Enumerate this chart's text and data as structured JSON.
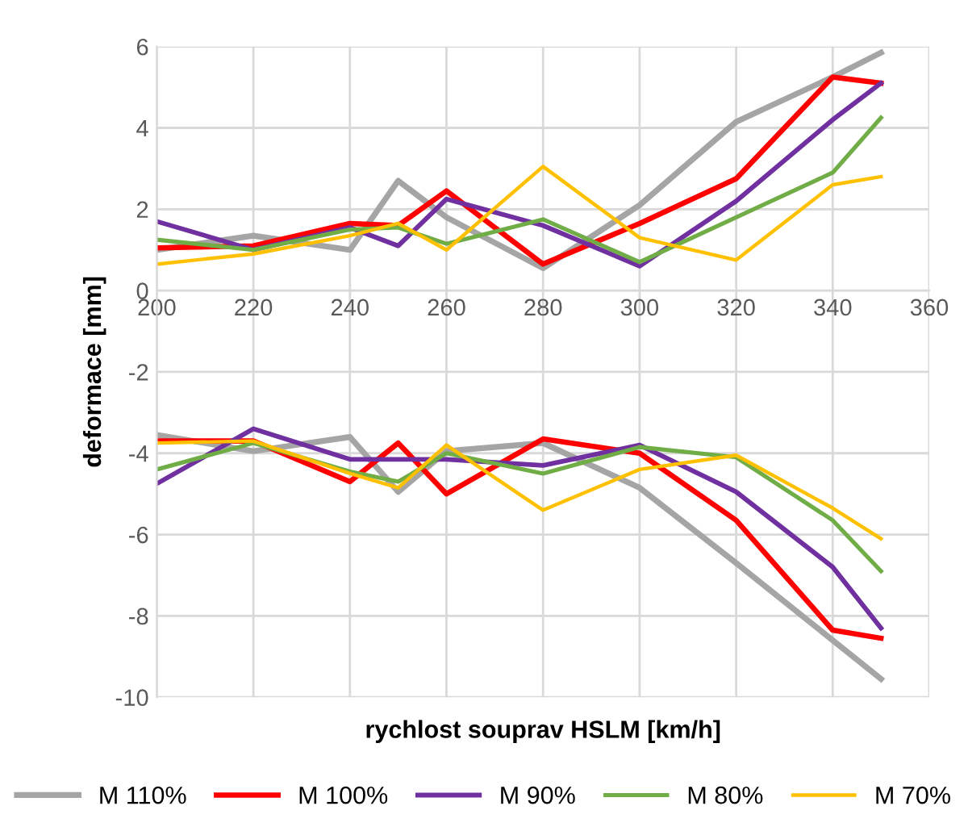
{
  "chart_data": {
    "type": "line",
    "xlabel": "rychlost souprav HSLM [km/h]",
    "ylabel": "deformace [mm]",
    "x": [
      200,
      220,
      240,
      250,
      260,
      280,
      300,
      320,
      340,
      350
    ],
    "xlim": [
      200,
      360
    ],
    "xticks": [
      200,
      220,
      240,
      260,
      280,
      300,
      320,
      340,
      360
    ],
    "ylim": [
      -10,
      6
    ],
    "yticks": [
      -10,
      -8,
      -6,
      -4,
      -2,
      0,
      2,
      4,
      6
    ],
    "grid": true,
    "legend": "bottom",
    "marker": "none",
    "line_style": "solid",
    "series": [
      {
        "name": "M 110%",
        "color": "#a5a5a5",
        "values": [
          1.0,
          1.35,
          1.0,
          2.7,
          1.8,
          0.55,
          2.1,
          4.15,
          5.25,
          5.85
        ]
      },
      {
        "name": "M 100%",
        "color": "#ff0000",
        "values": [
          1.05,
          1.1,
          1.65,
          1.6,
          2.45,
          0.65,
          1.65,
          2.75,
          5.25,
          5.1
        ]
      },
      {
        "name": "M 90%",
        "color": "#7030a0",
        "values": [
          1.7,
          1.0,
          1.55,
          1.1,
          2.25,
          1.6,
          0.6,
          2.2,
          4.2,
          5.1
        ]
      },
      {
        "name": "M 80%",
        "color": "#70ad47",
        "values": [
          1.25,
          1.0,
          1.5,
          1.55,
          1.15,
          1.75,
          0.7,
          1.8,
          2.9,
          4.25
        ]
      },
      {
        "name": "M 70%",
        "color": "#ffc000",
        "values": [
          0.65,
          0.9,
          1.35,
          1.65,
          1.0,
          3.05,
          1.3,
          0.75,
          2.6,
          2.8
        ]
      },
      {
        "color": "#a5a5a5",
        "values": [
          -3.55,
          -3.95,
          -3.6,
          -4.95,
          -3.95,
          -3.75,
          -4.85,
          -6.7,
          -8.6,
          -9.55
        ]
      },
      {
        "color": "#ff0000",
        "values": [
          -3.7,
          -3.7,
          -4.7,
          -3.75,
          -5.0,
          -3.65,
          -4.0,
          -5.65,
          -8.35,
          -8.55
        ]
      },
      {
        "color": "#7030a0",
        "values": [
          -4.75,
          -3.4,
          -4.15,
          -4.15,
          -4.15,
          -4.3,
          -3.8,
          -4.95,
          -6.8,
          -8.3
        ]
      },
      {
        "color": "#70ad47",
        "values": [
          -4.4,
          -3.75,
          -4.45,
          -4.7,
          -4.0,
          -4.5,
          -3.85,
          -4.1,
          -5.65,
          -6.9
        ]
      },
      {
        "color": "#ffc000",
        "values": [
          -3.75,
          -3.7,
          -4.5,
          -4.85,
          -3.8,
          -5.4,
          -4.4,
          -4.05,
          -5.35,
          -6.1
        ]
      }
    ]
  }
}
